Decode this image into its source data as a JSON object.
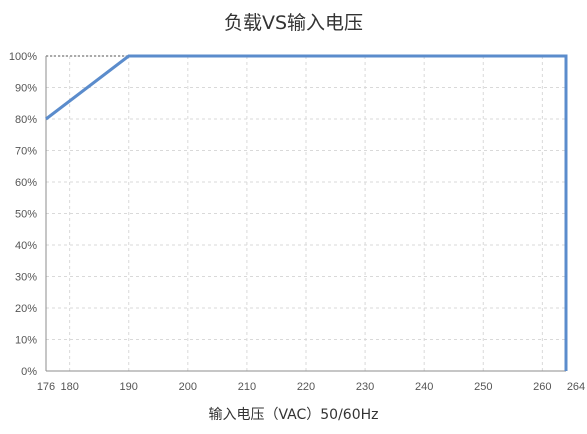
{
  "chart_data": {
    "type": "line",
    "title": "负载VS输入电压",
    "xlabel": "输入电压（VAC）50/60Hz",
    "ylabel": "",
    "x_ticks": [
      "176",
      "180",
      "190",
      "200",
      "210",
      "220",
      "230",
      "240",
      "250",
      "260",
      "264"
    ],
    "y_ticks": [
      "0%",
      "10%",
      "20%",
      "30%",
      "40%",
      "50%",
      "60%",
      "70%",
      "80%",
      "90%",
      "100%"
    ],
    "xlim": [
      176,
      264
    ],
    "ylim": [
      0,
      100
    ],
    "grid": true,
    "series": [
      {
        "x": [
          176,
          190,
          264,
          264
        ],
        "y": [
          80,
          100,
          100,
          0
        ]
      }
    ],
    "colors": {
      "line": "#5b8ccc",
      "grid": "#d9d9d9",
      "axis": "#8c8c8c"
    }
  }
}
